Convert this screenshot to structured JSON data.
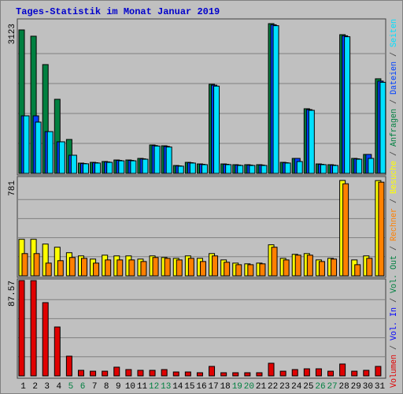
{
  "title": "Tages-Statistik im Monat Januar 2019",
  "legend_separator": "/",
  "chart_data": [
    {
      "type": "bar",
      "ylim": [
        0,
        3123
      ],
      "yticks": [
        3123
      ],
      "series": [
        {
          "name": "Anfragen",
          "color": "#008040",
          "values": [
            2992,
            2861,
            2269,
            1545,
            707,
            214,
            230,
            247,
            279,
            279,
            312,
            592,
            575,
            164,
            230,
            197,
            1858,
            197,
            181,
            181,
            181,
            3123,
            230,
            312,
            1348,
            197,
            181,
            2893,
            312,
            395,
            1973
          ]
        },
        {
          "name": "Dateien",
          "color": "#0040ff",
          "values": [
            1200,
            1200,
            871,
            658,
            378,
            205,
            222,
            238,
            270,
            270,
            303,
            580,
            562,
            156,
            222,
            189,
            1840,
            189,
            173,
            173,
            173,
            3100,
            222,
            312,
            1330,
            189,
            173,
            2870,
            303,
            395,
            1925
          ]
        },
        {
          "name": "Seiten",
          "color": "#00e0ff",
          "values": [
            1200,
            1069,
            871,
            658,
            378,
            200,
            215,
            230,
            262,
            262,
            295,
            570,
            550,
            150,
            215,
            182,
            1820,
            182,
            165,
            165,
            165,
            3080,
            215,
            247,
            1315,
            182,
            165,
            2850,
            295,
            312,
            1900
          ]
        }
      ]
    },
    {
      "type": "bar",
      "ylim": [
        0,
        781
      ],
      "yticks": [
        781
      ],
      "series": [
        {
          "name": "Besuche",
          "color": "#ffff00",
          "values": [
            299,
            299,
            260,
            234,
            189,
            163,
            137,
            169,
            163,
            163,
            137,
            163,
            150,
            143,
            163,
            143,
            182,
            130,
            104,
            98,
            104,
            254,
            143,
            176,
            182,
            130,
            143,
            781,
            130,
            163,
            780
          ]
        },
        {
          "name": "Rechner",
          "color": "#ff8000",
          "values": [
            182,
            182,
            104,
            124,
            150,
            143,
            104,
            130,
            130,
            130,
            117,
            150,
            143,
            130,
            143,
            117,
            163,
            111,
            91,
            91,
            98,
            234,
            130,
            169,
            169,
            117,
            137,
            754,
            91,
            143,
            767
          ]
        }
      ]
    },
    {
      "type": "bar",
      "ylim": [
        0,
        87.57
      ],
      "yticks": [
        87.57
      ],
      "categories": [
        "1",
        "2",
        "3",
        "4",
        "5",
        "6",
        "7",
        "8",
        "9",
        "10",
        "11",
        "12",
        "13",
        "14",
        "15",
        "16",
        "17",
        "18",
        "19",
        "20",
        "21",
        "22",
        "23",
        "24",
        "25",
        "26",
        "27",
        "28",
        "29",
        "30",
        "31"
      ],
      "category_colors": [
        "#000000",
        "#000000",
        "#000000",
        "#000000",
        "#008040",
        "#008040",
        "#000000",
        "#000000",
        "#000000",
        "#000000",
        "#000000",
        "#008040",
        "#008040",
        "#000000",
        "#000000",
        "#000000",
        "#000000",
        "#000000",
        "#008040",
        "#008040",
        "#000000",
        "#000000",
        "#000000",
        "#000000",
        "#000000",
        "#008040",
        "#008040",
        "#000000",
        "#000000",
        "#000000",
        "#000000"
      ],
      "series": [
        {
          "name": "Volumen",
          "color": "#e00000",
          "values": [
            87.57,
            87.5,
            67.3,
            44.9,
            18.1,
            5.1,
            4.3,
            4.3,
            8.0,
            5.8,
            5.1,
            5.1,
            5.8,
            3.6,
            3.6,
            2.9,
            8.7,
            2.9,
            2.9,
            2.9,
            2.9,
            11.6,
            4.3,
            5.8,
            6.5,
            6.5,
            4.3,
            10.9,
            4.3,
            5.1,
            8.7
          ]
        }
      ],
      "legend_extra": [
        {
          "name": "Vol. In",
          "color": "#0000ff"
        },
        {
          "name": "Vol. Out",
          "color": "#008040"
        }
      ]
    }
  ]
}
